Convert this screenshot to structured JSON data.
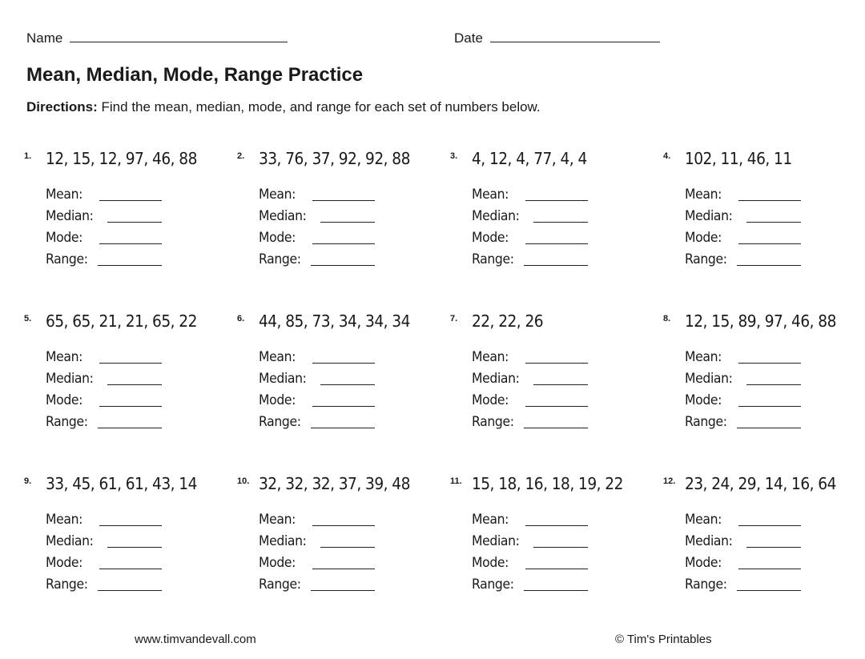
{
  "header": {
    "name_label": "Name",
    "date_label": "Date"
  },
  "title": "Mean, Median, Mode, Range Practice",
  "directions": {
    "label": "Directions:",
    "text": " Find the mean, median, mode, and range for each set of numbers below."
  },
  "answer_labels": [
    "Mean:",
    "Median:",
    "Mode:",
    "Range:"
  ],
  "problems": [
    {
      "number": "1.",
      "set": "12, 15, 12, 97, 46, 88"
    },
    {
      "number": "2.",
      "set": "33, 76, 37, 92, 92, 88"
    },
    {
      "number": "3.",
      "set": "4, 12, 4, 77, 4, 4"
    },
    {
      "number": "4.",
      "set": "102, 11, 46, 11"
    },
    {
      "number": "5.",
      "set": "65, 65, 21, 21, 65, 22"
    },
    {
      "number": "6.",
      "set": "44, 85, 73, 34, 34, 34"
    },
    {
      "number": "7.",
      "set": "22, 22, 26"
    },
    {
      "number": "8.",
      "set": "12, 15, 89, 97, 46, 88"
    },
    {
      "number": "9.",
      "set": "33, 45, 61, 61, 43, 14"
    },
    {
      "number": "10.",
      "set": "32, 32, 32, 37, 39, 48"
    },
    {
      "number": "11.",
      "set": "15, 18, 16, 18, 19, 22"
    },
    {
      "number": "12.",
      "set": "23, 24, 29, 14, 16, 64"
    }
  ],
  "footer": {
    "website": "www.timvandevall.com",
    "copyright": "© Tim's Printables"
  }
}
